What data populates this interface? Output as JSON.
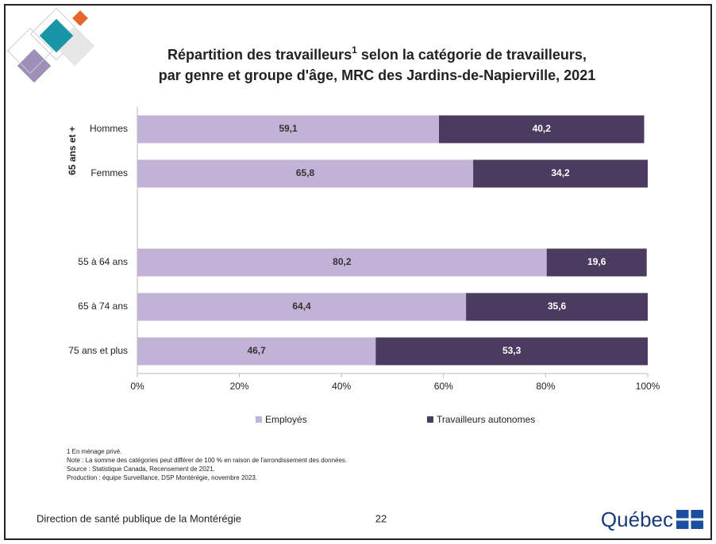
{
  "chart_data": {
    "type": "stacked-barh",
    "title": [
      "Répartition des travailleurs",
      "1",
      " selon la catégorie de travailleurs,",
      "par genre et groupe d'âge, MRC des Jardins-de-Napierville, 2021"
    ],
    "group_label": "65 ans et +",
    "categories": [
      "Hommes",
      "Femmes",
      null,
      "55 à 64 ans",
      "65 à 74 ans",
      "75 ans et plus"
    ],
    "series": [
      {
        "name": "Employés",
        "color": "#c3b2d7",
        "values": [
          59.1,
          65.8,
          null,
          80.2,
          64.4,
          46.7
        ],
        "value_labels": [
          "59,1",
          "65,8",
          null,
          "80,2",
          "64,4",
          "46,7"
        ]
      },
      {
        "name": "Travailleurs autonomes",
        "color": "#4b3b60",
        "values": [
          40.2,
          34.2,
          null,
          19.6,
          35.6,
          53.3
        ],
        "value_labels": [
          "40,2",
          "34,2",
          null,
          "19,6",
          "35,6",
          "53,3"
        ]
      }
    ],
    "xlim": [
      0,
      100
    ],
    "xticks": [
      {
        "value": 0,
        "label": "0%"
      },
      {
        "value": 20,
        "label": "20%"
      },
      {
        "value": 40,
        "label": "40%"
      },
      {
        "value": 60,
        "label": "60%"
      },
      {
        "value": 80,
        "label": "80%"
      },
      {
        "value": 100,
        "label": "100%"
      }
    ],
    "legend": "bottom"
  },
  "notes": [
    "1 En ménage privé.",
    "Note : La somme des catégories peut différer de 100 % en raison de l'arrondissement des données.",
    "Source : Statistique Canada, Recensement de 2021.",
    "Production : équipe Surveillance, DSP Montérégie, novembre 2023."
  ],
  "footer": {
    "left": "Direction de santé publique de la Montérégie",
    "page": "22",
    "logo": "Québec"
  }
}
